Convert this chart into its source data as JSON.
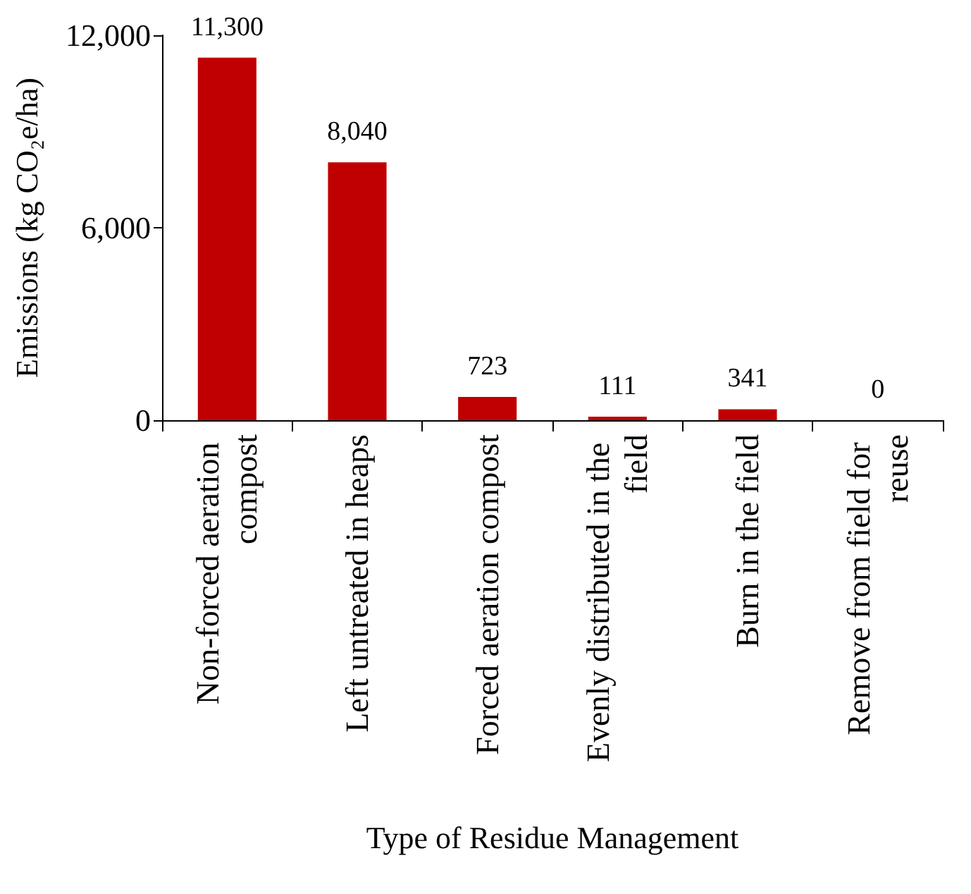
{
  "chart_data": {
    "type": "bar",
    "xlabel": "Type of Residue Management",
    "ylabel": "Emissions (kg CO₂e/ha)",
    "categories": [
      "Non-forced aeration compost",
      "Left untreated in heaps",
      "Forced aeration compost",
      "Evenly distributed in the field",
      "Burn in the field",
      "Remove from field for reuse"
    ],
    "values": [
      11300,
      8040,
      723,
      111,
      341,
      0
    ],
    "value_labels": [
      "11,300",
      "8,040",
      "723",
      "111",
      "341",
      "0"
    ],
    "color": "#c00000",
    "ylim": [
      0,
      12000
    ],
    "yticks": [
      {
        "value": 0,
        "label": "0"
      },
      {
        "value": 6000,
        "label": "6,000"
      },
      {
        "value": 12000,
        "label": "12,000"
      }
    ],
    "grid": false
  }
}
